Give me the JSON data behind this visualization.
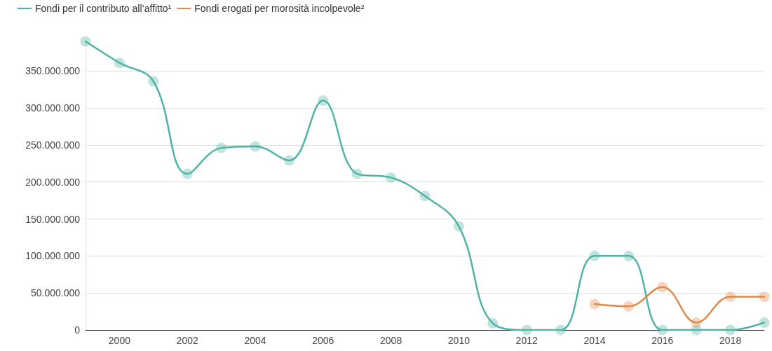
{
  "chart_data": {
    "type": "line",
    "x": [
      1999,
      2000,
      2001,
      2002,
      2003,
      2004,
      2005,
      2006,
      2007,
      2008,
      2009,
      2010,
      2011,
      2012,
      2013,
      2014,
      2015,
      2016,
      2017,
      2018,
      2019
    ],
    "series": [
      {
        "name": "Fondi per il contributo all’affitto¹",
        "color": "#4fb3a3",
        "values": [
          390000000,
          361000000,
          336000000,
          211000000,
          246000000,
          248000000,
          229000000,
          310000000,
          211000000,
          206000000,
          181000000,
          140000000,
          9000000,
          0,
          0,
          100000000,
          100000000,
          0,
          0,
          0,
          10000000
        ]
      },
      {
        "name": "Fondi erogati per morosità incolpevole²",
        "color": "#e0884a",
        "values": [
          null,
          null,
          null,
          null,
          null,
          null,
          null,
          null,
          null,
          null,
          null,
          null,
          null,
          null,
          null,
          35000000,
          32000000,
          58000000,
          10000000,
          45000000,
          45000000
        ]
      }
    ],
    "xlim": [
      1999,
      2019
    ],
    "xticks": [
      2000,
      2002,
      2004,
      2006,
      2008,
      2010,
      2012,
      2014,
      2016,
      2018
    ],
    "ylim": [
      0,
      390000000
    ],
    "yticks": [
      {
        "value": 0,
        "label": "0"
      },
      {
        "value": 50000000,
        "label": "50.000.000"
      },
      {
        "value": 100000000,
        "label": "100.000.000"
      },
      {
        "value": 150000000,
        "label": "150.000.000"
      },
      {
        "value": 200000000,
        "label": "200.000.000"
      },
      {
        "value": 250000000,
        "label": "250.000.000"
      },
      {
        "value": 300000000,
        "label": "300.000.000"
      },
      {
        "value": 350000000,
        "label": "350.000.000"
      }
    ],
    "grid": "y",
    "legend": "top left",
    "marker": "circle",
    "line_style": "solid"
  }
}
